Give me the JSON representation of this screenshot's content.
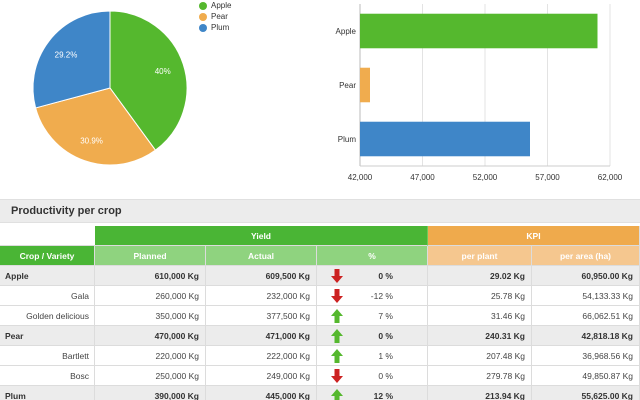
{
  "colors": {
    "apple": "#55b82e",
    "pear": "#f0ac4e",
    "plum": "#3f86c8",
    "up": "#55b82e",
    "down": "#cc2222"
  },
  "chart_data": [
    {
      "type": "pie",
      "labels": [
        "Apple",
        "Pear",
        "Plum"
      ],
      "values": [
        40,
        30.9,
        29.2
      ],
      "data_labels": [
        "40%",
        "30.9%",
        "29.2%"
      ],
      "legend": {
        "placement": "right-top",
        "entries": [
          "Apple",
          "Pear",
          "Plum"
        ]
      }
    },
    {
      "type": "bar",
      "orientation": "horizontal",
      "categories": [
        "Apple",
        "Pear",
        "Plum"
      ],
      "values": [
        61000,
        42800,
        55600
      ],
      "xlim": [
        42000,
        62000
      ],
      "xticks": [
        "42,000",
        "47,000",
        "52,000",
        "57,000",
        "62,000"
      ],
      "grid": true
    }
  ],
  "section": {
    "title": "Productivity per crop"
  },
  "table": {
    "group_headers": {
      "yield": "Yield",
      "kpi": "KPI"
    },
    "columns": {
      "crop": "Crop / Variety",
      "planned": "Planned",
      "actual": "Actual",
      "pct": "%",
      "per_plant": "per plant",
      "per_area": "per area (ha)"
    },
    "rows": [
      {
        "crop": "Apple",
        "planned": "610,000 Kg",
        "actual": "609,500 Kg",
        "trend": "down",
        "pct": "0 %",
        "per_plant": "29.02 Kg",
        "per_area": "60,950.00 Kg"
      },
      {
        "crop": "Gala",
        "planned": "260,000 Kg",
        "actual": "232,000 Kg",
        "trend": "down",
        "pct": "-12 %",
        "per_plant": "25.78 Kg",
        "per_area": "54,133.33 Kg"
      },
      {
        "crop": "Golden delicious",
        "planned": "350,000 Kg",
        "actual": "377,500 Kg",
        "trend": "up",
        "pct": "7 %",
        "per_plant": "31.46 Kg",
        "per_area": "66,062.51 Kg"
      },
      {
        "crop": "Pear",
        "planned": "470,000 Kg",
        "actual": "471,000 Kg",
        "trend": "up",
        "pct": "0 %",
        "per_plant": "240.31 Kg",
        "per_area": "42,818.18 Kg"
      },
      {
        "crop": "Bartlett",
        "planned": "220,000 Kg",
        "actual": "222,000 Kg",
        "trend": "up",
        "pct": "1 %",
        "per_plant": "207.48 Kg",
        "per_area": "36,968.56 Kg"
      },
      {
        "crop": "Bosc",
        "planned": "250,000 Kg",
        "actual": "249,000 Kg",
        "trend": "down",
        "pct": "0 %",
        "per_plant": "279.78 Kg",
        "per_area": "49,850.87 Kg"
      },
      {
        "crop": "Plum",
        "planned": "390,000 Kg",
        "actual": "445,000 Kg",
        "trend": "up",
        "pct": "12 %",
        "per_plant": "213.94 Kg",
        "per_area": "55,625.00 Kg"
      }
    ]
  }
}
